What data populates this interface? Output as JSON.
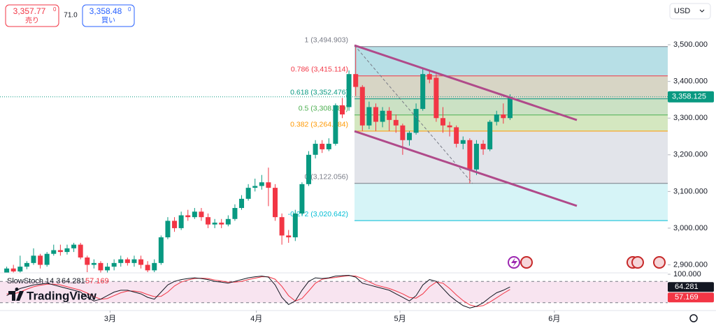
{
  "toolbar": {
    "sell_price": "3,357.77",
    "sell_sup": "0",
    "sell_label": "売り",
    "spread": "71.0",
    "buy_price": "3,358.48",
    "buy_sup": "0",
    "buy_label": "買い",
    "currency": "USD"
  },
  "brand": "TradingView",
  "chart_data": {
    "type": "candlestick",
    "up_color": "#089981",
    "down_color": "#f23645",
    "open": [
      2875,
      2890,
      2882,
      2895,
      2905,
      2925,
      2900,
      2930,
      2940,
      2935,
      2945,
      2955,
      2920,
      2900,
      2905,
      2885,
      2895,
      2905,
      2915,
      2905,
      2915,
      2900,
      2885,
      2905,
      2975,
      3020,
      3000,
      3035,
      3030,
      3045,
      3030,
      3010,
      3015,
      3010,
      3025,
      3055,
      3080,
      3110,
      3115,
      3125,
      3110,
      3030,
      2980,
      2975,
      3040,
      3120,
      3200,
      3230,
      3215,
      3230,
      3335,
      3330,
      3420,
      3385,
      3280,
      3330,
      3290,
      3320,
      3295,
      3280,
      3240,
      3260,
      3325,
      3420,
      3410,
      3300,
      3280,
      3275,
      3230,
      3240,
      3160,
      3230,
      3215,
      3290,
      3310,
      3300
    ],
    "high": [
      2895,
      2900,
      2925,
      2910,
      2945,
      2930,
      2935,
      2955,
      2955,
      2955,
      2960,
      2960,
      2925,
      2915,
      2910,
      2905,
      2915,
      2925,
      2920,
      2925,
      2925,
      2910,
      2915,
      2980,
      3030,
      3030,
      3045,
      3050,
      3055,
      3055,
      3040,
      3025,
      3025,
      3035,
      3065,
      3090,
      3120,
      3135,
      3145,
      3165,
      3120,
      3040,
      2995,
      3050,
      3125,
      3210,
      3240,
      3240,
      3245,
      3340,
      3355,
      3430,
      3494.903,
      3390,
      3345,
      3340,
      3330,
      3330,
      3310,
      3285,
      3265,
      3340,
      3435,
      3430,
      3420,
      3330,
      3290,
      3280,
      3250,
      3245,
      3240,
      3240,
      3295,
      3320,
      3340,
      3365
    ],
    "low": [
      2870,
      2875,
      2878,
      2888,
      2900,
      2890,
      2895,
      2925,
      2925,
      2928,
      2935,
      2915,
      2880,
      2890,
      2870,
      2878,
      2885,
      2895,
      2898,
      2895,
      2890,
      2880,
      2880,
      2900,
      2970,
      2990,
      2995,
      3020,
      3025,
      3020,
      3000,
      3000,
      3000,
      3005,
      3020,
      3050,
      3075,
      3100,
      3105,
      3060,
      3020,
      2955,
      2960,
      2965,
      3035,
      3115,
      3190,
      3205,
      3210,
      3225,
      3300,
      3320,
      3360,
      3265,
      3270,
      3265,
      3275,
      3265,
      3260,
      3200,
      3225,
      3255,
      3320,
      3395,
      3290,
      3260,
      3250,
      3220,
      3215,
      3122.056,
      3145,
      3200,
      3210,
      3280,
      3285,
      3295
    ],
    "close": [
      2890,
      2882,
      2895,
      2905,
      2925,
      2900,
      2930,
      2940,
      2935,
      2945,
      2955,
      2920,
      2900,
      2905,
      2885,
      2895,
      2905,
      2915,
      2905,
      2915,
      2900,
      2885,
      2905,
      2975,
      3020,
      3000,
      3035,
      3030,
      3045,
      3030,
      3010,
      3015,
      3010,
      3025,
      3055,
      3080,
      3110,
      3115,
      3125,
      3110,
      3030,
      2980,
      2975,
      3040,
      3120,
      3200,
      3230,
      3215,
      3230,
      3335,
      3310,
      3420,
      3385,
      3280,
      3330,
      3290,
      3320,
      3295,
      3280,
      3240,
      3260,
      3325,
      3420,
      3405,
      3300,
      3280,
      3275,
      3230,
      3240,
      3160,
      3230,
      3215,
      3290,
      3310,
      3300,
      3358.125
    ],
    "xlim": [
      -1,
      98.5
    ],
    "xticks": [
      {
        "value": 15.4,
        "label": "3月"
      },
      {
        "value": 37.2,
        "label": "4月"
      },
      {
        "value": 58.6,
        "label": "5月"
      },
      {
        "value": 81.6,
        "label": "6月"
      }
    ],
    "ylim": [
      2880,
      3622
    ],
    "yticks": [
      {
        "value": 2900,
        "label": "2,900.000"
      },
      {
        "value": 3000,
        "label": "3,000.000"
      },
      {
        "value": 3100,
        "label": "3,100.000"
      },
      {
        "value": 3200,
        "label": "3,200.000"
      },
      {
        "value": 3300,
        "label": "3,300.000"
      },
      {
        "value": 3400,
        "label": "3,400.000"
      },
      {
        "value": 3500,
        "label": "3,500.000"
      }
    ],
    "last_price": {
      "value": 3358.125,
      "label": "3,358.125"
    },
    "fib_levels": [
      {
        "value": 3494.903,
        "label": "1 (3,494.903)",
        "color": "#787b86",
        "fill": "#9fd4de"
      },
      {
        "value": 3415.114,
        "label": "0.786 (3,415.114)",
        "color": "#f23645",
        "fill": "#c9c7b2"
      },
      {
        "value": 3352.476,
        "label": "0.618 (3,352.476)",
        "color": "#089981",
        "fill": "#b9d7b0"
      },
      {
        "value": 3308.48,
        "label": "0.5 (3,308.480)",
        "color": "#4caf50",
        "fill": "#c6dfab"
      },
      {
        "value": 3264.484,
        "label": "0.382 (3,264.484)",
        "color": "#ff9800",
        "fill": "#d8dbe3"
      },
      {
        "value": 3122.056,
        "label": "0 (3,122.056)",
        "color": "#787b86",
        "fill": "#c8f0f4"
      },
      {
        "value": 3020.642,
        "label": "-0.272 (3,020.642)",
        "color": "#00bcd4"
      }
    ],
    "indicator": {
      "name": "SlowStoch 14 3",
      "ylim": [
        0,
        100
      ],
      "yticks": [
        {
          "value": 100,
          "label": "100.000"
        }
      ],
      "bands": [
        20,
        80
      ],
      "band_fill": "#f8e4f0",
      "k": {
        "color": "#131722",
        "values": [
          40,
          50,
          60,
          65,
          70,
          72,
          75,
          70,
          65,
          60,
          55,
          50,
          35,
          25,
          30,
          40,
          50,
          55,
          55,
          50,
          45,
          35,
          30,
          50,
          70,
          80,
          85,
          88,
          90,
          88,
          85,
          80,
          78,
          75,
          80,
          85,
          90,
          93,
          95,
          92,
          70,
          35,
          15,
          25,
          55,
          80,
          90,
          88,
          90,
          95,
          96,
          97,
          92,
          75,
          70,
          65,
          60,
          55,
          45,
          35,
          25,
          40,
          70,
          85,
          80,
          60,
          40,
          25,
          12,
          5,
          10,
          20,
          35,
          48,
          55,
          64.281
        ]
      },
      "d": {
        "color": "#f23645",
        "values": [
          45,
          45,
          50,
          58,
          65,
          69,
          72,
          72,
          70,
          65,
          60,
          55,
          47,
          37,
          30,
          32,
          40,
          48,
          53,
          53,
          50,
          43,
          37,
          38,
          50,
          67,
          78,
          84,
          88,
          89,
          88,
          84,
          81,
          78,
          78,
          80,
          85,
          89,
          93,
          93,
          86,
          66,
          40,
          25,
          32,
          53,
          75,
          86,
          89,
          91,
          94,
          96,
          95,
          88,
          79,
          70,
          65,
          60,
          53,
          45,
          35,
          33,
          45,
          65,
          78,
          75,
          60,
          42,
          26,
          14,
          9,
          12,
          22,
          34,
          46,
          57.169
        ]
      }
    }
  }
}
